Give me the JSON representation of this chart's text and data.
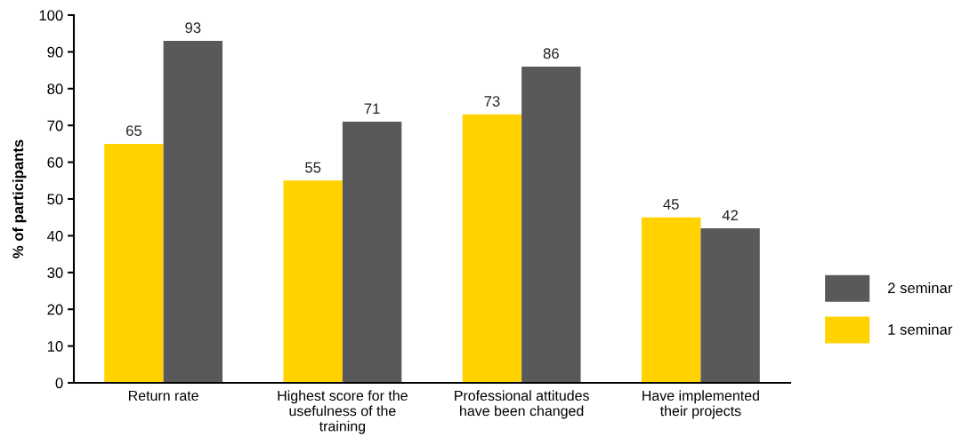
{
  "chart_data": {
    "type": "bar",
    "ylabel": "% of participants",
    "categories": [
      "Return rate",
      "Highest score for the\nusefulness of the\ntraining",
      "Professional attitudes\nhave been changed",
      "Have implemented\ntheir projects"
    ],
    "series": [
      {
        "name": "1 seminar",
        "color": "#ffd200",
        "values": [
          65,
          55,
          73,
          45
        ]
      },
      {
        "name": "2 seminar",
        "color": "#59595b",
        "values": [
          93,
          71,
          86,
          42
        ]
      }
    ],
    "ylim": [
      0,
      100
    ],
    "yticks": [
      0,
      10,
      20,
      30,
      40,
      50,
      60,
      70,
      80,
      90,
      100
    ],
    "data_labels": true,
    "grid": false,
    "legend": "right"
  }
}
